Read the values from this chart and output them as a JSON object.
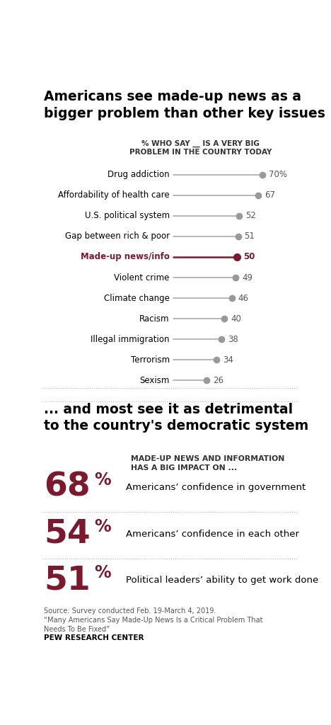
{
  "title1": "Americans see made-up news as a\nbigger problem than other key issues ...",
  "subtitle1": "% WHO SAY __ IS A VERY BIG\nPROBLEM IN THE COUNTRY TODAY",
  "categories": [
    "Drug addiction",
    "Affordability of health care",
    "U.S. political system",
    "Gap between rich & poor",
    "Made-up news/info",
    "Violent crime",
    "Climate change",
    "Racism",
    "Illegal immigration",
    "Terrorism",
    "Sexism"
  ],
  "values": [
    70,
    67,
    52,
    51,
    50,
    49,
    46,
    40,
    38,
    34,
    26
  ],
  "highlight_index": 4,
  "highlight_color": "#7b1a2e",
  "normal_line_color": "#aaaaaa",
  "normal_dot_color": "#999999",
  "highlight_label_color": "#7b1a2e",
  "value_label_color_normal": "#555555",
  "value_label_color_highlight": "#7b1a2e",
  "title2": "... and most see it as detrimental\nto the country's democratic system",
  "subtitle2": "MADE-UP NEWS AND INFORMATION\nHAS A BIG IMPACT ON ...",
  "big_stats": [
    "68",
    "54",
    "51"
  ],
  "big_stat_labels": [
    "Americans’ confidence in government",
    "Americans’ confidence in each other",
    "Political leaders’ ability to get work done"
  ],
  "big_stat_color": "#7b1a2e",
  "source_text": "Source: Survey conducted Feb. 19-March 4, 2019.\n“Many Americans Say Made-Up News Is a Critical Problem That\nNeeds To Be Fixed”",
  "pew_label": "PEW RESEARCH CENTER",
  "bg_color": "#ffffff"
}
